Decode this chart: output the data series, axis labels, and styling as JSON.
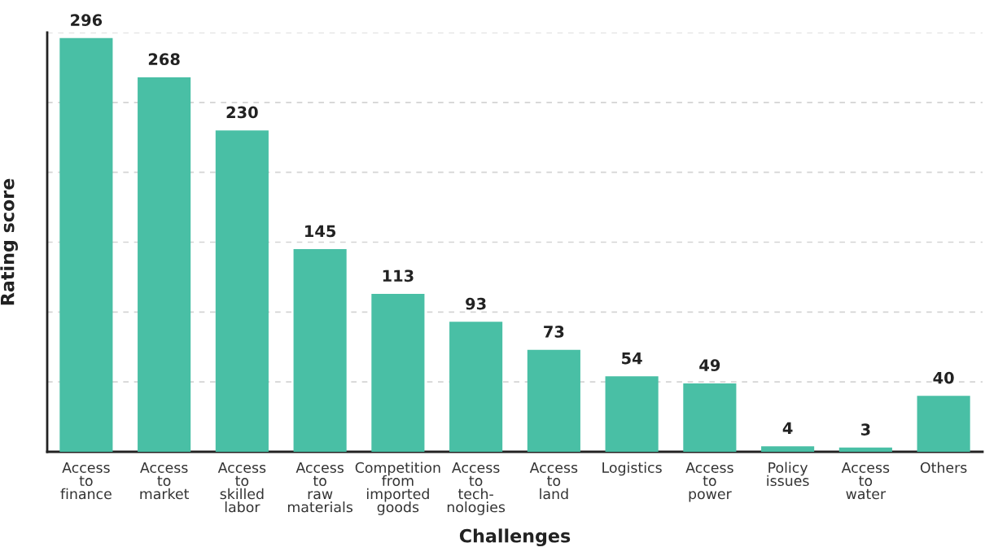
{
  "chart_data": {
    "type": "bar",
    "categories": [
      "Access\nto\nfinance",
      "Access\nto\nmarket",
      "Access\nto\nskilled\nlabor",
      "Access\nto\nraw\nmaterials",
      "Competition\nfrom\nimported\ngoods",
      "Access\nto\ntech-\nnologies",
      "Access\nto\nland",
      "Logistics",
      "Access\nto\npower",
      "Policy\nissues",
      "Access\nto\nwater",
      "Others"
    ],
    "values": [
      296,
      268,
      230,
      145,
      113,
      93,
      73,
      54,
      49,
      4,
      3,
      40
    ],
    "color": "#49bfa5",
    "xlabel": "Challenges",
    "ylabel": "Rating score",
    "ylim": [
      0,
      300
    ],
    "yticks": [
      {
        "value": 50,
        "label": null
      },
      {
        "value": 100,
        "label": null
      },
      {
        "value": 150,
        "label": null
      },
      {
        "value": 200,
        "label": null
      },
      {
        "value": 250,
        "label": null
      },
      {
        "value": 300,
        "label": null
      }
    ],
    "grid": "y",
    "data_labels": true,
    "tick_labels": "x"
  }
}
